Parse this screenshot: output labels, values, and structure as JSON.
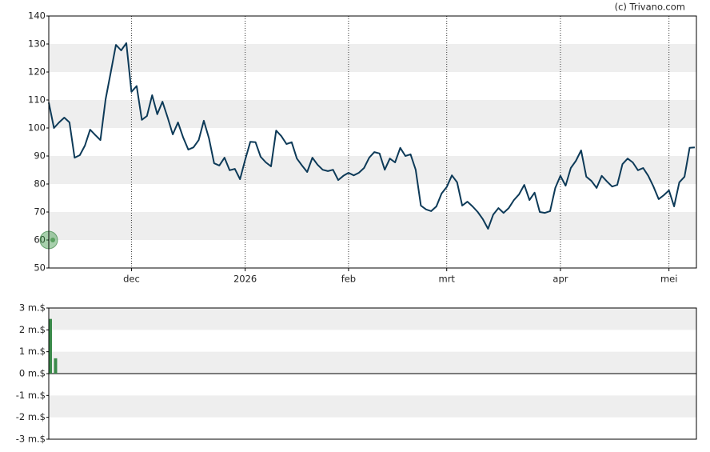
{
  "chart_data": [
    {
      "type": "line",
      "source": "(c) Trivano.com",
      "categories": [
        null,
        null,
        null,
        null,
        null,
        null,
        null,
        null,
        null,
        null,
        null,
        null,
        null,
        null,
        null,
        null,
        "dec",
        null,
        null,
        null,
        null,
        null,
        null,
        null,
        null,
        null,
        null,
        null,
        null,
        null,
        null,
        null,
        null,
        null,
        null,
        null,
        null,
        null,
        "2026",
        null,
        null,
        null,
        null,
        null,
        null,
        null,
        null,
        null,
        null,
        null,
        null,
        null,
        null,
        null,
        null,
        null,
        null,
        null,
        "feb",
        null,
        null,
        null,
        null,
        null,
        null,
        null,
        null,
        null,
        null,
        null,
        null,
        null,
        null,
        null,
        null,
        null,
        null,
        "mrt",
        null,
        null,
        null,
        null,
        null,
        null,
        null,
        null,
        null,
        null,
        null,
        null,
        null,
        null,
        null,
        null,
        null,
        null,
        null,
        null,
        null,
        "apr",
        null,
        null,
        null,
        null,
        null,
        null,
        null,
        null,
        null,
        null,
        null,
        null,
        null,
        null,
        null,
        null,
        null,
        null,
        null,
        null,
        "mei",
        null,
        null,
        null,
        null,
        null
      ],
      "values": [
        109.1,
        100,
        102,
        103.7,
        102,
        89.4,
        90.3,
        93.7,
        99.4,
        97.5,
        95.7,
        110.3,
        120,
        129.7,
        127.7,
        130.3,
        112.9,
        115,
        102.9,
        104.3,
        111.7,
        104.9,
        109.4,
        103.7,
        97.7,
        102,
        96.6,
        92.3,
        93.1,
        95.7,
        102.6,
        96.3,
        87.4,
        86.6,
        89.4,
        84.9,
        85.4,
        81.7,
        88.6,
        95.1,
        94.9,
        89.7,
        87.7,
        86.3,
        99.1,
        97.1,
        94.3,
        94.9,
        89.1,
        86.6,
        84.3,
        89.4,
        86.9,
        85.1,
        84.6,
        85.1,
        81.4,
        82.9,
        84,
        83.1,
        84,
        85.7,
        89.4,
        91.4,
        90.9,
        85.1,
        89.1,
        87.7,
        92.9,
        90,
        90.6,
        85.1,
        72.3,
        70.9,
        70.3,
        72,
        76.6,
        78.9,
        83.1,
        80.6,
        72.3,
        73.7,
        72,
        70,
        67.4,
        64,
        69.1,
        71.4,
        69.7,
        71.4,
        74.3,
        76.3,
        79.7,
        74.3,
        76.9,
        70,
        69.7,
        70.3,
        78.6,
        82.9,
        79.4,
        85.7,
        88.3,
        92,
        82.6,
        81.1,
        78.6,
        82.9,
        80.9,
        79.1,
        79.7,
        87.1,
        89.1,
        87.7,
        84.9,
        85.7,
        82.9,
        79.1,
        74.6,
        76,
        77.7,
        72,
        80.6,
        82.6,
        92.9,
        93.1
      ],
      "color": "#0d3a58",
      "ylim": [
        50,
        140
      ],
      "yticks": [
        50,
        60,
        70,
        80,
        90,
        100,
        110,
        120,
        130,
        140
      ],
      "grid": true
    },
    {
      "type": "bar",
      "values": [
        2.5,
        0.7
      ],
      "color": "#3a8a4a",
      "ylim": [
        -3,
        3
      ],
      "yticks": [
        {
          "value": -3,
          "label": "-3 m.$"
        },
        {
          "value": -2,
          "label": "-2 m.$"
        },
        {
          "value": -1,
          "label": "-1 m.$"
        },
        {
          "value": 0,
          "label": "0 m.$"
        },
        {
          "value": 1,
          "label": "1 m.$"
        },
        {
          "value": 2,
          "label": "2 m.$"
        },
        {
          "value": 3,
          "label": "3 m.$"
        }
      ],
      "grid": true
    }
  ]
}
